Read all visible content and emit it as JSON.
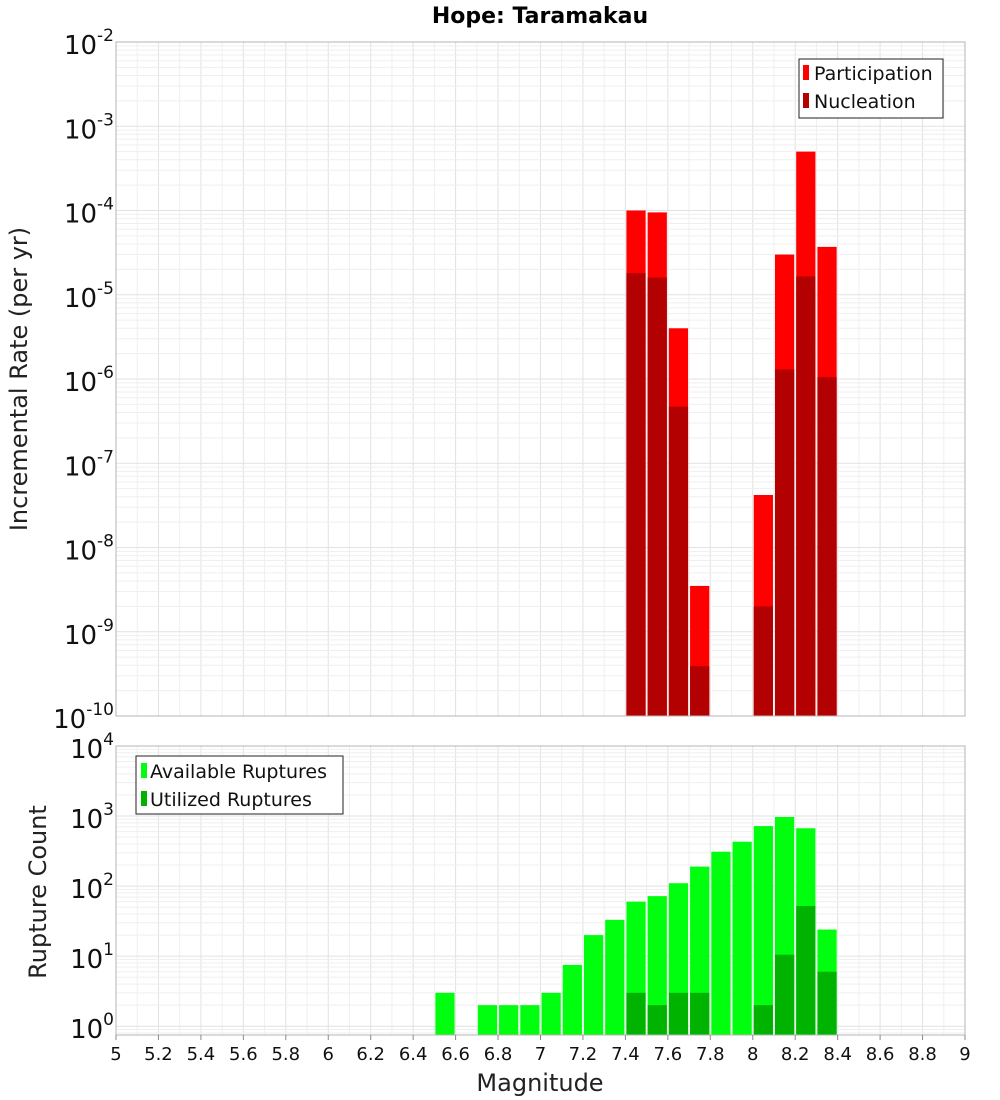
{
  "chart_data": [
    {
      "type": "bar",
      "title": "Hope: Taramakau",
      "ylabel": "Incremental Rate (per yr)",
      "xlabel": "",
      "xlim": [
        5,
        9
      ],
      "ylim": [
        1e-10,
        0.01
      ],
      "yscale": "log",
      "grid": true,
      "legend_position": "top-right",
      "bar_width": 0.1,
      "series": [
        {
          "name": "Participation",
          "color": "#ff0000",
          "points": [
            {
              "x": 7.45,
              "y": 0.0001
            },
            {
              "x": 7.55,
              "y": 9.5e-05
            },
            {
              "x": 7.65,
              "y": 4e-06
            },
            {
              "x": 7.75,
              "y": 3.5e-09
            },
            {
              "x": 8.05,
              "y": 4.2e-08
            },
            {
              "x": 8.15,
              "y": 3e-05
            },
            {
              "x": 8.25,
              "y": 0.0005
            },
            {
              "x": 8.35,
              "y": 3.7e-05
            }
          ]
        },
        {
          "name": "Nucleation",
          "color": "#b30000",
          "points": [
            {
              "x": 7.45,
              "y": 1.8e-05
            },
            {
              "x": 7.55,
              "y": 1.6e-05
            },
            {
              "x": 7.65,
              "y": 4.7e-07
            },
            {
              "x": 7.75,
              "y": 3.9e-10
            },
            {
              "x": 8.05,
              "y": 2e-09
            },
            {
              "x": 8.15,
              "y": 1.3e-06
            },
            {
              "x": 8.25,
              "y": 1.65e-05
            },
            {
              "x": 8.35,
              "y": 1.05e-06
            }
          ]
        }
      ]
    },
    {
      "type": "bar",
      "title": "",
      "ylabel": "Rupture Count",
      "xlabel": "Magnitude",
      "xlim": [
        5,
        9
      ],
      "ylim": [
        0.75,
        10000
      ],
      "yscale": "log",
      "grid": true,
      "legend_position": "top-left",
      "bar_width": 0.1,
      "x_ticks": [
        "5",
        "5.2",
        "5.4",
        "5.6",
        "5.8",
        "6",
        "6.2",
        "6.4",
        "6.6",
        "6.8",
        "7",
        "7.2",
        "7.4",
        "7.6",
        "7.8",
        "8",
        "8.2",
        "8.4",
        "8.6",
        "8.8",
        "9"
      ],
      "series": [
        {
          "name": "Available Ruptures",
          "color": "#00ff0e",
          "points": [
            {
              "x": 6.55,
              "y": 3
            },
            {
              "x": 6.75,
              "y": 2
            },
            {
              "x": 6.85,
              "y": 2
            },
            {
              "x": 6.95,
              "y": 2
            },
            {
              "x": 7.05,
              "y": 3
            },
            {
              "x": 7.15,
              "y": 7.5
            },
            {
              "x": 7.25,
              "y": 20
            },
            {
              "x": 7.35,
              "y": 33
            },
            {
              "x": 7.45,
              "y": 60
            },
            {
              "x": 7.55,
              "y": 72
            },
            {
              "x": 7.65,
              "y": 110
            },
            {
              "x": 7.75,
              "y": 190
            },
            {
              "x": 7.85,
              "y": 310
            },
            {
              "x": 7.95,
              "y": 430
            },
            {
              "x": 8.05,
              "y": 720
            },
            {
              "x": 8.15,
              "y": 970
            },
            {
              "x": 8.25,
              "y": 670
            },
            {
              "x": 8.35,
              "y": 24
            }
          ]
        },
        {
          "name": "Utilized Ruptures",
          "color": "#00b300",
          "points": [
            {
              "x": 7.45,
              "y": 3
            },
            {
              "x": 7.55,
              "y": 2
            },
            {
              "x": 7.65,
              "y": 3
            },
            {
              "x": 7.75,
              "y": 3
            },
            {
              "x": 8.05,
              "y": 2
            },
            {
              "x": 8.15,
              "y": 10.5
            },
            {
              "x": 8.25,
              "y": 52
            },
            {
              "x": 8.35,
              "y": 6
            }
          ]
        }
      ]
    }
  ],
  "top_y_ticks": [
    {
      "base": "10",
      "exp": "-10",
      "value": 1e-10
    },
    {
      "base": "10",
      "exp": "-9",
      "value": 1e-09
    },
    {
      "base": "10",
      "exp": "-8",
      "value": 1e-08
    },
    {
      "base": "10",
      "exp": "-7",
      "value": 1e-07
    },
    {
      "base": "10",
      "exp": "-6",
      "value": 1e-06
    },
    {
      "base": "10",
      "exp": "-5",
      "value": 1e-05
    },
    {
      "base": "10",
      "exp": "-4",
      "value": 0.0001
    },
    {
      "base": "10",
      "exp": "-3",
      "value": 0.001
    },
    {
      "base": "10",
      "exp": "-2",
      "value": 0.01
    }
  ],
  "bottom_y_ticks": [
    {
      "base": "10",
      "exp": "0",
      "value": 1
    },
    {
      "base": "10",
      "exp": "1",
      "value": 10
    },
    {
      "base": "10",
      "exp": "2",
      "value": 100
    },
    {
      "base": "10",
      "exp": "3",
      "value": 1000
    },
    {
      "base": "10",
      "exp": "4",
      "value": 10000
    }
  ]
}
